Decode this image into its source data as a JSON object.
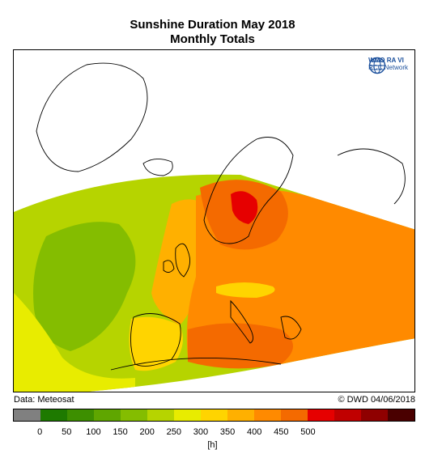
{
  "title_line1": "Sunshine Duration May 2018",
  "title_line2": "Monthly Totals",
  "logo": {
    "name": "WMO RA VI",
    "sub": "RCC Network",
    "icon": "wmo-globe-icon",
    "color": "#1a4f9c"
  },
  "source": "Data: Meteosat",
  "credit": "© DWD 04/06/2018",
  "legend": {
    "colors": [
      "#808080",
      "#1e7a00",
      "#3d8f00",
      "#5fa600",
      "#84bd00",
      "#b6d400",
      "#e8ec00",
      "#ffd400",
      "#ffb000",
      "#ff8a00",
      "#f46a00",
      "#e60000",
      "#c00000",
      "#8f0000",
      "#4a0000"
    ],
    "ticks": [
      "0",
      "50",
      "100",
      "150",
      "200",
      "250",
      "300",
      "350",
      "400",
      "450",
      "500"
    ],
    "unit": "[h]",
    "min_value": 0,
    "max_value": 500
  },
  "map": {
    "region": "Europe, North Atlantic, North Africa",
    "colors": {
      "atlantic": "#b6d400",
      "mid_atlantic_low": "#84bd00",
      "mid_atlantic_high": "#e8ec00",
      "iberia": "#ffd400",
      "western_europe": "#ffb000",
      "central_europe": "#ff8a00",
      "scandinavia": "#f46a00",
      "max_scandinavia": "#e60000",
      "mediterranean": "#f46a00",
      "alps": "#ffd400",
      "coastline": "#000000"
    }
  }
}
